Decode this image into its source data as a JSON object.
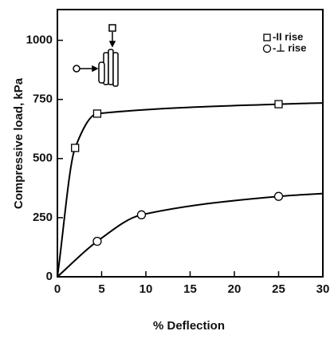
{
  "chart_data": {
    "type": "line",
    "x_label": "% Deflection",
    "y_label": "Compressive load, kPa",
    "xlim": [
      0,
      30
    ],
    "xticks": [
      0,
      5,
      10,
      15,
      20,
      25,
      30
    ],
    "ylim": [
      0,
      1130
    ],
    "yticks": [
      0,
      250,
      500,
      750,
      1000
    ],
    "legend": "upper right",
    "series": [
      {
        "name": "-II rise",
        "marker": "square",
        "color": "#000000",
        "x": [
          0,
          2,
          4.5,
          25,
          30
        ],
        "values": [
          0,
          545,
          690,
          730,
          735
        ],
        "markers": [
          false,
          true,
          true,
          true,
          false
        ]
      },
      {
        "name": "-⊥ rise",
        "marker": "circle",
        "color": "#000000",
        "x": [
          0,
          4.5,
          9.5,
          25,
          30
        ],
        "values": [
          0,
          150,
          262,
          340,
          352
        ],
        "markers": [
          false,
          true,
          true,
          true,
          false
        ]
      }
    ]
  }
}
